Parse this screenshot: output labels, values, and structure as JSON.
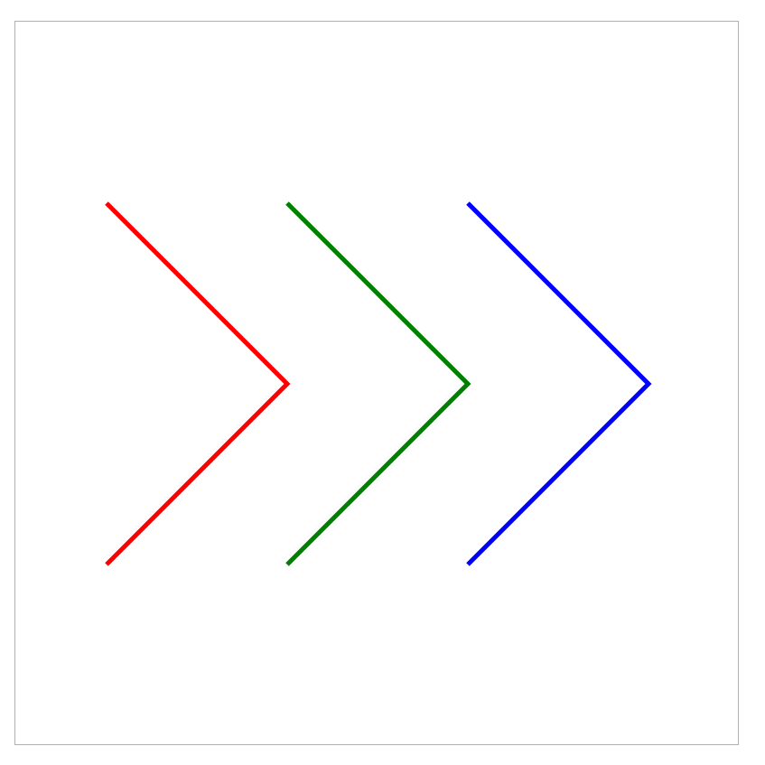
{
  "diagram": {
    "shapes": [
      {
        "name": "red-chevron",
        "icon": "chevron-right-icon",
        "color": "#ff0000"
      },
      {
        "name": "green-chevron",
        "icon": "chevron-right-icon",
        "color": "#008000"
      },
      {
        "name": "blue-chevron",
        "icon": "chevron-right-icon",
        "color": "#0000ff"
      }
    ],
    "frame_color": "#b0b0b0",
    "background": "#ffffff"
  }
}
